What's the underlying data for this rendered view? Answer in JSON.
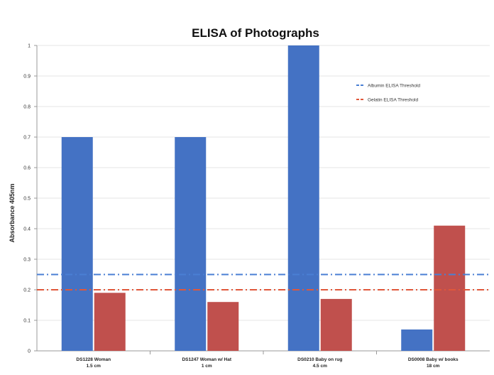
{
  "chart_data": {
    "type": "bar",
    "title": "ELISA of Photographs",
    "ylabel": "Absorbance 405nm",
    "xlabel": "",
    "ylim": [
      0,
      1
    ],
    "yticks": [
      "0",
      "0.1",
      "0.2",
      "0.3",
      "0.4",
      "0.5",
      "0.6",
      "0.7",
      "0.8",
      "0.9",
      "1"
    ],
    "categories": [
      [
        "DS1228 Woman",
        "1.5 cm"
      ],
      [
        "DS1247 Woman w/ Hat",
        "1 cm"
      ],
      [
        "DS0210 Baby on rug",
        "4.5 cm"
      ],
      [
        "DS0008 Baby w/ books",
        "18 cm"
      ]
    ],
    "series": [
      {
        "name": "",
        "color": "#4472c4",
        "values": [
          0.7,
          0.7,
          1.0,
          0.07
        ]
      },
      {
        "name": "",
        "color": "#c0504d",
        "values": [
          0.19,
          0.16,
          0.17,
          0.41
        ]
      }
    ],
    "thresholds": [
      {
        "label": "Albumin ELISA Threshold",
        "value": 0.25,
        "color": "#4a7fd4",
        "style": "dash-dot"
      },
      {
        "label": "Gelatin ELISA Threshold",
        "value": 0.2,
        "color": "#e0573a",
        "style": "dash-dot"
      }
    ],
    "grid": true,
    "legend_position": "top-right"
  }
}
